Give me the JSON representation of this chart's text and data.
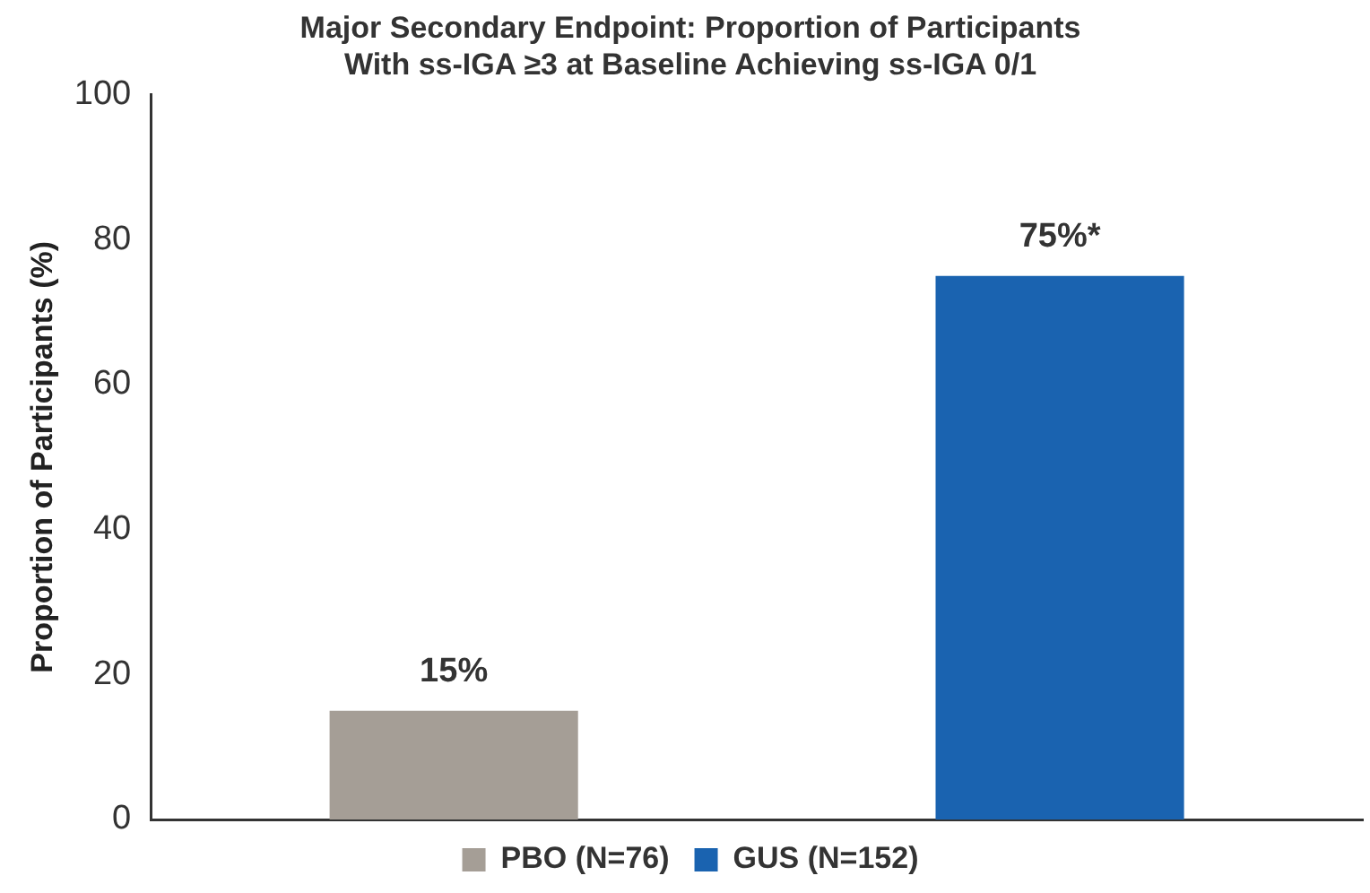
{
  "chart_data": {
    "type": "bar",
    "title": "Major Secondary Endpoint: Proportion of Participants\nWith ss-IGA ≥3 at Baseline Achieving ss-IGA 0/1",
    "ylabel": "Proportion of Participants (%)",
    "categories": [
      null,
      null
    ],
    "series": [
      {
        "name": "PBO (N=76)",
        "color": "#a59e96",
        "values": [
          15,
          null
        ],
        "value_labels": [
          "15%",
          null
        ]
      },
      {
        "name": "GUS (N=152)",
        "color": "#1a63b0",
        "values": [
          null,
          75
        ],
        "value_labels": [
          null,
          "75%*"
        ]
      }
    ],
    "ylim": [
      0,
      100
    ],
    "yticks": [
      0,
      20,
      40,
      60,
      80,
      100
    ],
    "grid": false,
    "legend": "bottom"
  }
}
